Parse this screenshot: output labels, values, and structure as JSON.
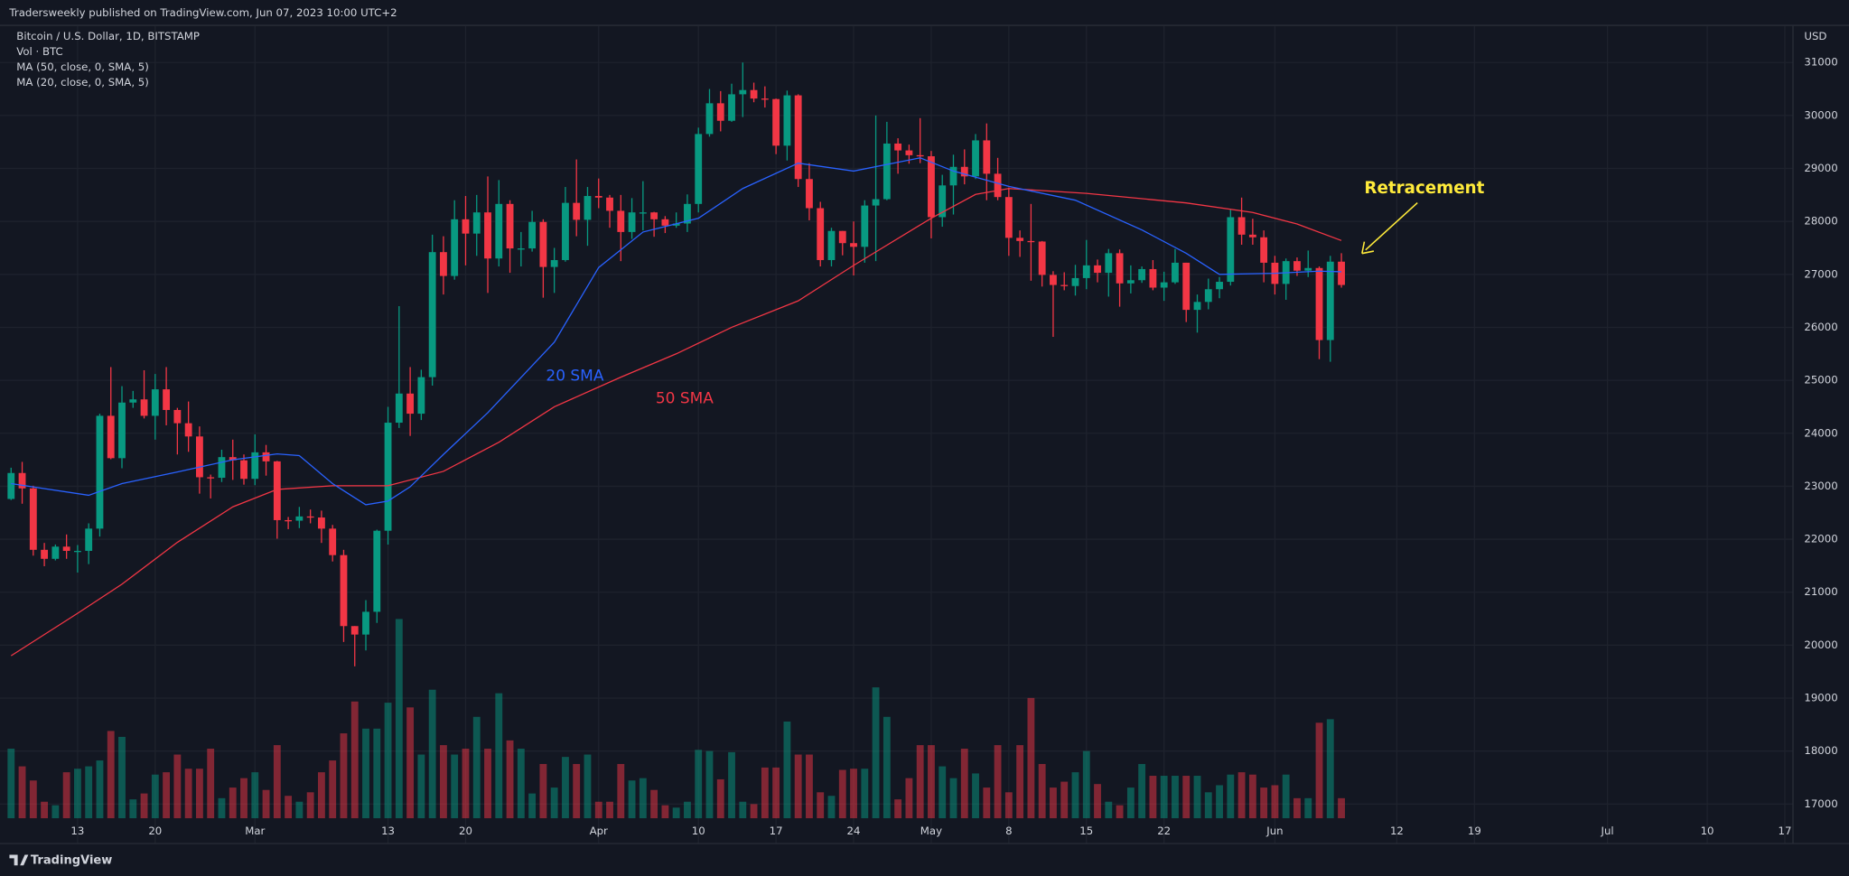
{
  "header": "Tradersweekly published on TradingView.com, Jun 07, 2023 10:00 UTC+2",
  "footer": "TradingView",
  "chart_data": {
    "type": "candlestick",
    "symbol": "Bitcoin / U.S. Dollar, 1D, BITSTAMP",
    "volume_label": "Vol · BTC",
    "currency": "USD",
    "up_color": "#089981",
    "down_color": "#f23645",
    "grid": true,
    "xlim": [
      "2023-02-06",
      "2023-07-18"
    ],
    "ylim": [
      16265,
      31735
    ],
    "yticks": [
      17000,
      18000,
      19000,
      20000,
      21000,
      22000,
      23000,
      24000,
      25000,
      26000,
      27000,
      28000,
      29000,
      30000,
      31000
    ],
    "xticks": [
      {
        "value": "2023-02-13",
        "label": "13"
      },
      {
        "value": "2023-02-20",
        "label": "20"
      },
      {
        "value": "2023-03-01",
        "label": "Mar"
      },
      {
        "value": "2023-03-13",
        "label": "13"
      },
      {
        "value": "2023-03-20",
        "label": "20"
      },
      {
        "value": "2023-04-01",
        "label": "Apr"
      },
      {
        "value": "2023-04-10",
        "label": "10"
      },
      {
        "value": "2023-04-17",
        "label": "17"
      },
      {
        "value": "2023-04-24",
        "label": "24"
      },
      {
        "value": "2023-05-01",
        "label": "May"
      },
      {
        "value": "2023-05-08",
        "label": "8"
      },
      {
        "value": "2023-05-15",
        "label": "15"
      },
      {
        "value": "2023-05-22",
        "label": "22"
      },
      {
        "value": "2023-06-01",
        "label": "Jun"
      },
      {
        "value": "2023-06-12",
        "label": "12"
      },
      {
        "value": "2023-06-19",
        "label": "19"
      },
      {
        "value": "2023-07-01",
        "label": "Jul"
      },
      {
        "value": "2023-07-10",
        "label": "10"
      },
      {
        "value": "2023-07-17",
        "label": "17"
      }
    ],
    "volume_lim": [
      0,
      10000
    ],
    "x": [
      "2023-02-07",
      "2023-02-08",
      "2023-02-09",
      "2023-02-10",
      "2023-02-11",
      "2023-02-12",
      "2023-02-13",
      "2023-02-14",
      "2023-02-15",
      "2023-02-16",
      "2023-02-17",
      "2023-02-18",
      "2023-02-19",
      "2023-02-20",
      "2023-02-21",
      "2023-02-22",
      "2023-02-23",
      "2023-02-24",
      "2023-02-25",
      "2023-02-26",
      "2023-02-27",
      "2023-02-28",
      "2023-03-01",
      "2023-03-02",
      "2023-03-03",
      "2023-03-04",
      "2023-03-05",
      "2023-03-06",
      "2023-03-07",
      "2023-03-08",
      "2023-03-09",
      "2023-03-10",
      "2023-03-11",
      "2023-03-12",
      "2023-03-13",
      "2023-03-14",
      "2023-03-15",
      "2023-03-16",
      "2023-03-17",
      "2023-03-18",
      "2023-03-19",
      "2023-03-20",
      "2023-03-21",
      "2023-03-22",
      "2023-03-23",
      "2023-03-24",
      "2023-03-25",
      "2023-03-26",
      "2023-03-27",
      "2023-03-28",
      "2023-03-29",
      "2023-03-30",
      "2023-03-31",
      "2023-04-01",
      "2023-04-02",
      "2023-04-03",
      "2023-04-04",
      "2023-04-05",
      "2023-04-06",
      "2023-04-07",
      "2023-04-08",
      "2023-04-09",
      "2023-04-10",
      "2023-04-11",
      "2023-04-12",
      "2023-04-13",
      "2023-04-14",
      "2023-04-15",
      "2023-04-16",
      "2023-04-17",
      "2023-04-18",
      "2023-04-19",
      "2023-04-20",
      "2023-04-21",
      "2023-04-22",
      "2023-04-23",
      "2023-04-24",
      "2023-04-25",
      "2023-04-26",
      "2023-04-27",
      "2023-04-28",
      "2023-04-29",
      "2023-04-30",
      "2023-05-01",
      "2023-05-02",
      "2023-05-03",
      "2023-05-04",
      "2023-05-05",
      "2023-05-06",
      "2023-05-07",
      "2023-05-08",
      "2023-05-09",
      "2023-05-10",
      "2023-05-11",
      "2023-05-12",
      "2023-05-13",
      "2023-05-14",
      "2023-05-15",
      "2023-05-16",
      "2023-05-17",
      "2023-05-18",
      "2023-05-19",
      "2023-05-20",
      "2023-05-21",
      "2023-05-22",
      "2023-05-23",
      "2023-05-24",
      "2023-05-25",
      "2023-05-26",
      "2023-05-27",
      "2023-05-28",
      "2023-05-29",
      "2023-05-30",
      "2023-05-31",
      "2023-06-01",
      "2023-06-02",
      "2023-06-03",
      "2023-06-04",
      "2023-06-05",
      "2023-06-06",
      "2023-06-07"
    ],
    "open": [
      22760,
      23250,
      22960,
      21800,
      21630,
      21860,
      21780,
      21780,
      22200,
      24330,
      23530,
      24580,
      24640,
      24330,
      24830,
      24440,
      24190,
      23940,
      23170,
      23160,
      23550,
      23490,
      23140,
      23640,
      23470,
      22360,
      22350,
      22430,
      22410,
      22200,
      21700,
      20360,
      20200,
      20630,
      22160,
      24200,
      24750,
      24370,
      25060,
      27420,
      26970,
      28040,
      27770,
      28170,
      27300,
      28330,
      27490,
      27490,
      27990,
      27140,
      27270,
      28350,
      28030,
      28480,
      28450,
      28200,
      27800,
      28170,
      28170,
      28040,
      27920,
      27960,
      28330,
      29650,
      30230,
      29900,
      30400,
      30480,
      30320,
      30310,
      29430,
      30380,
      28800,
      28250,
      27270,
      27820,
      27590,
      27520,
      28300,
      28420,
      29470,
      29340,
      29250,
      29230,
      28080,
      28680,
      29030,
      28850,
      29530,
      28900,
      28460,
      27690,
      27630,
      27620,
      26990,
      26800,
      26780,
      26930,
      27170,
      27030,
      27400,
      26830,
      26890,
      27100,
      26750,
      26850,
      27220,
      26330,
      26480,
      26720,
      26860,
      28080,
      27750,
      27700,
      27220,
      26820,
      27250,
      27070,
      27120,
      25760,
      27240
    ],
    "high": [
      23350,
      23460,
      23010,
      21930,
      21900,
      22090,
      21890,
      22300,
      24370,
      25250,
      24890,
      24800,
      25190,
      25120,
      25250,
      24480,
      24600,
      24130,
      23220,
      23690,
      23880,
      23600,
      23980,
      23780,
      23480,
      22420,
      22610,
      22560,
      22540,
      22270,
      21800,
      20360,
      20850,
      22180,
      24500,
      26400,
      25250,
      25200,
      27750,
      27720,
      28400,
      28480,
      28500,
      28850,
      28780,
      28400,
      27800,
      28200,
      28040,
      27500,
      28650,
      29170,
      28650,
      28810,
      28500,
      28500,
      28440,
      28760,
      28180,
      28100,
      28170,
      28510,
      29770,
      30500,
      30460,
      30600,
      31000,
      30620,
      30550,
      30320,
      30470,
      30400,
      29100,
      28370,
      27880,
      27820,
      28000,
      28400,
      30000,
      29880,
      29570,
      29450,
      29950,
      29330,
      28880,
      29260,
      29360,
      29650,
      29850,
      29200,
      28640,
      27830,
      28330,
      27630,
      27060,
      27040,
      27180,
      27650,
      27280,
      27480,
      27470,
      27170,
      27150,
      27270,
      27050,
      27480,
      27220,
      26620,
      26920,
      26950,
      28220,
      28450,
      28050,
      27830,
      27350,
      27300,
      27320,
      27450,
      27150,
      27350,
      27400
    ],
    "low": [
      22740,
      22670,
      21690,
      21490,
      21600,
      21630,
      21370,
      21530,
      22050,
      23510,
      23340,
      24480,
      24280,
      23880,
      24150,
      23600,
      23650,
      22860,
      22770,
      23080,
      23120,
      23030,
      23020,
      23200,
      22010,
      22190,
      22210,
      22300,
      21930,
      21580,
      20060,
      19600,
      19900,
      20420,
      21900,
      24100,
      23950,
      24250,
      24900,
      26620,
      26900,
      27170,
      27350,
      26650,
      27150,
      27030,
      27150,
      27430,
      26560,
      26650,
      27240,
      27720,
      27540,
      28250,
      27880,
      27250,
      27670,
      27830,
      27710,
      27780,
      27880,
      27800,
      28170,
      29600,
      29700,
      29880,
      29970,
      30250,
      30150,
      29270,
      29150,
      28650,
      28020,
      27150,
      27150,
      27360,
      26980,
      27220,
      27250,
      28400,
      28900,
      29090,
      29100,
      27680,
      27900,
      28130,
      28700,
      28800,
      28400,
      28400,
      27350,
      27330,
      26880,
      26770,
      25820,
      26700,
      26600,
      26720,
      26850,
      26580,
      26390,
      26640,
      26840,
      26700,
      26500,
      26820,
      26100,
      25900,
      26340,
      26550,
      26790,
      27560,
      27560,
      26850,
      26620,
      26520,
      26970,
      26950,
      25400,
      25350,
      26750
    ],
    "close": [
      23250,
      22960,
      21800,
      21630,
      21860,
      21780,
      21780,
      22200,
      24330,
      23530,
      24580,
      24640,
      24330,
      24830,
      24440,
      24190,
      23940,
      23170,
      23160,
      23550,
      23490,
      23140,
      23640,
      23470,
      22360,
      22350,
      22430,
      22410,
      22200,
      21700,
      20360,
      20200,
      20630,
      22160,
      24200,
      24750,
      24370,
      25060,
      27420,
      26970,
      28040,
      27770,
      28170,
      27300,
      28330,
      27490,
      27490,
      27990,
      27140,
      27270,
      28350,
      28030,
      28480,
      28450,
      28200,
      27800,
      28170,
      28170,
      28040,
      27920,
      27960,
      28330,
      29650,
      30230,
      29900,
      30400,
      30480,
      30320,
      30310,
      29430,
      30380,
      28800,
      28250,
      27270,
      27820,
      27590,
      27520,
      28300,
      28420,
      29470,
      29340,
      29250,
      29230,
      28080,
      28680,
      29030,
      28850,
      29530,
      28900,
      28460,
      27690,
      27630,
      27620,
      26990,
      26800,
      26780,
      26930,
      27170,
      27030,
      27400,
      26830,
      26890,
      27100,
      26750,
      26850,
      27220,
      26330,
      26480,
      26720,
      26860,
      28080,
      27750,
      27700,
      27220,
      26820,
      27250,
      27070,
      27120,
      25760,
      27240,
      26800
    ],
    "volume": [
      2950,
      2200,
      1600,
      700,
      550,
      1950,
      2100,
      2200,
      2450,
      3700,
      3450,
      800,
      1050,
      1850,
      1950,
      2700,
      2100,
      2100,
      2950,
      850,
      1300,
      1700,
      1950,
      1200,
      3100,
      950,
      700,
      1100,
      1950,
      2450,
      3600,
      4950,
      3800,
      3800,
      4900,
      8450,
      4700,
      2700,
      5450,
      3100,
      2700,
      2950,
      4300,
      2950,
      5300,
      3300,
      2950,
      1050,
      2300,
      1300,
      2600,
      2300,
      2700,
      700,
      700,
      2300,
      1600,
      1700,
      1200,
      550,
      450,
      700,
      2900,
      2850,
      1650,
      2800,
      700,
      600,
      2150,
      2150,
      4100,
      2700,
      2700,
      1100,
      950,
      2050,
      2100,
      2100,
      5550,
      4300,
      800,
      1700,
      3100,
      3100,
      2200,
      1700,
      2950,
      1900,
      1300,
      3100,
      1100,
      3100,
      5100,
      2300,
      1300,
      1550,
      1950,
      2850,
      1450,
      700,
      550,
      1300,
      2300,
      1800,
      1800,
      1800,
      1800,
      1800,
      1100,
      1400,
      1850,
      1950,
      1850,
      1300,
      1400,
      1850,
      850,
      850,
      4050,
      4200,
      850
    ],
    "series": [
      {
        "name": "MA (50, close, 0, SMA, 5)",
        "color": "#f23645",
        "x": [
          "2023-02-07",
          "2023-02-13",
          "2023-02-17",
          "2023-02-22",
          "2023-02-27",
          "2023-03-03",
          "2023-03-08",
          "2023-03-13",
          "2023-03-18",
          "2023-03-23",
          "2023-03-28",
          "2023-04-03",
          "2023-04-08",
          "2023-04-13",
          "2023-04-19",
          "2023-04-24",
          "2023-05-01",
          "2023-05-05",
          "2023-05-08",
          "2023-05-15",
          "2023-05-24",
          "2023-05-30",
          "2023-06-03",
          "2023-06-07"
        ],
        "values": [
          19800,
          20600,
          21150,
          21940,
          22610,
          22940,
          23010,
          23010,
          23280,
          23830,
          24500,
          25060,
          25500,
          26000,
          26500,
          27170,
          28060,
          28510,
          28620,
          28530,
          28350,
          28170,
          27950,
          27640
        ]
      },
      {
        "name": "MA (20, close, 0, SMA, 5)",
        "color": "#2962ff",
        "x": [
          "2023-02-07",
          "2023-02-14",
          "2023-02-17",
          "2023-02-22",
          "2023-02-27",
          "2023-03-03",
          "2023-03-05",
          "2023-03-08",
          "2023-03-11",
          "2023-03-13",
          "2023-03-15",
          "2023-03-18",
          "2023-03-22",
          "2023-03-28",
          "2023-04-01",
          "2023-04-05",
          "2023-04-10",
          "2023-04-14",
          "2023-04-19",
          "2023-04-24",
          "2023-04-30",
          "2023-05-03",
          "2023-05-08",
          "2023-05-14",
          "2023-05-20",
          "2023-05-24",
          "2023-05-27",
          "2023-06-01",
          "2023-06-05",
          "2023-06-07"
        ],
        "values": [
          23050,
          22830,
          23050,
          23270,
          23500,
          23610,
          23580,
          23050,
          22650,
          22720,
          22990,
          23600,
          24390,
          25720,
          27130,
          27800,
          28060,
          28620,
          29100,
          28950,
          29200,
          28950,
          28660,
          28400,
          27840,
          27400,
          27000,
          27020,
          27060,
          27050
        ]
      }
    ],
    "annotations": [
      {
        "text": "20 SMA",
        "color": "#2962ff"
      },
      {
        "text": "50 SMA",
        "color": "#f23645"
      },
      {
        "text": "Retracement",
        "color": "#ffeb3b"
      }
    ]
  }
}
